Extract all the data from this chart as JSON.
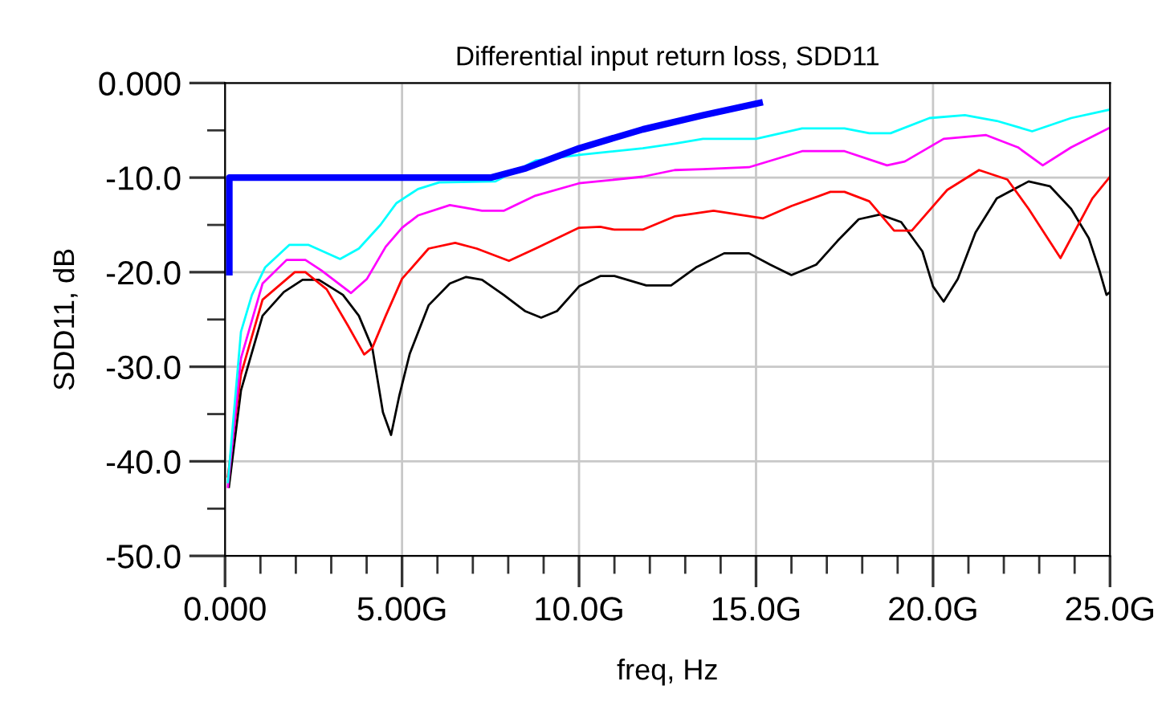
{
  "chart_data": {
    "type": "line",
    "title": "Differential input return loss, SDD11",
    "xlabel": "freq, Hz",
    "ylabel": "SDD11, dB",
    "xlim": [
      0,
      25
    ],
    "ylim": [
      -50,
      0
    ],
    "xticks": [
      {
        "value": 0,
        "label": "0.000"
      },
      {
        "value": 5,
        "label": "5.00G"
      },
      {
        "value": 10,
        "label": "10.0G"
      },
      {
        "value": 15,
        "label": "15.0G"
      },
      {
        "value": 20,
        "label": "20.0G"
      },
      {
        "value": 25,
        "label": "25.0G"
      }
    ],
    "yticks": [
      {
        "value": -50,
        "label": "-50.0"
      },
      {
        "value": -40,
        "label": "-40.0"
      },
      {
        "value": -30,
        "label": "-30.0"
      },
      {
        "value": -20,
        "label": "-20.0"
      },
      {
        "value": -10,
        "label": "-10.0"
      },
      {
        "value": 0,
        "label": "0.000"
      }
    ],
    "grid": true,
    "legend": false,
    "line_style": "solid",
    "marker": "none",
    "series": [
      {
        "color": "#000000",
        "x": [
          0.11,
          0.45,
          1.06,
          1.66,
          2.19,
          2.65,
          3.33,
          3.78,
          4.16,
          4.46,
          4.69,
          4.92,
          5.22,
          5.75,
          6.35,
          6.81,
          7.26,
          7.87,
          8.47,
          8.93,
          9.38,
          10.0,
          10.6,
          11.0,
          11.9,
          12.6,
          13.3,
          14.1,
          14.8,
          15.4,
          16.0,
          16.7,
          17.3,
          17.9,
          18.5,
          19.1,
          19.7,
          20.0,
          20.3,
          20.7,
          21.2,
          21.8,
          22.7,
          23.3,
          23.9,
          24.4,
          24.7,
          24.9,
          25.0
        ],
        "values": [
          -42.7,
          -32.5,
          -24.6,
          -22.1,
          -20.8,
          -20.8,
          -22.4,
          -24.6,
          -28.0,
          -34.8,
          -37.2,
          -33.1,
          -28.6,
          -23.5,
          -21.2,
          -20.5,
          -20.8,
          -22.4,
          -24.1,
          -24.8,
          -24.1,
          -21.5,
          -20.4,
          -20.4,
          -21.4,
          -21.4,
          -19.5,
          -18.0,
          -18.0,
          -19.2,
          -20.3,
          -19.2,
          -16.7,
          -14.4,
          -13.9,
          -14.7,
          -17.8,
          -21.5,
          -23.1,
          -20.7,
          -15.8,
          -12.2,
          -10.4,
          -10.9,
          -13.3,
          -16.4,
          -19.8,
          -22.4,
          -22.1
        ]
      },
      {
        "color": "#ff0000",
        "x": [
          0.08,
          0.45,
          1.06,
          1.97,
          2.27,
          2.87,
          3.48,
          3.93,
          4.16,
          4.54,
          5.0,
          5.75,
          6.5,
          7.11,
          8.02,
          8.77,
          10.0,
          10.6,
          11.0,
          11.8,
          12.7,
          13.8,
          15.2,
          16.0,
          17.1,
          17.5,
          18.2,
          18.9,
          19.4,
          20.4,
          21.3,
          22.1,
          22.7,
          23.6,
          24.5,
          25.0
        ],
        "values": [
          -41.6,
          -30.8,
          -22.9,
          -20.0,
          -20.0,
          -21.8,
          -25.7,
          -28.7,
          -28.0,
          -24.6,
          -20.7,
          -17.5,
          -16.9,
          -17.5,
          -18.8,
          -17.5,
          -15.3,
          -15.2,
          -15.5,
          -15.5,
          -14.1,
          -13.5,
          -14.3,
          -13.0,
          -11.5,
          -11.5,
          -12.5,
          -15.6,
          -15.6,
          -11.3,
          -9.2,
          -10.2,
          -13.3,
          -18.5,
          -12.2,
          -9.9
        ]
      },
      {
        "color": "#ff00ff",
        "x": [
          0.08,
          0.45,
          1.06,
          1.74,
          2.27,
          2.72,
          3.56,
          4.01,
          4.54,
          5.0,
          5.45,
          6.35,
          7.26,
          7.87,
          8.77,
          10.0,
          11.8,
          12.7,
          13.5,
          14.8,
          16.3,
          17.5,
          18.7,
          19.2,
          20.3,
          21.5,
          22.4,
          23.1,
          23.9,
          25.0
        ],
        "values": [
          -42.7,
          -29.1,
          -21.2,
          -18.7,
          -18.7,
          -19.8,
          -22.2,
          -20.7,
          -17.3,
          -15.3,
          -14.0,
          -12.9,
          -13.5,
          -13.5,
          -11.9,
          -10.6,
          -9.9,
          -9.2,
          -9.1,
          -8.9,
          -7.2,
          -7.2,
          -8.7,
          -8.3,
          -5.9,
          -5.5,
          -6.8,
          -8.7,
          -6.8,
          -4.7
        ]
      },
      {
        "color": "#00ffff",
        "x": [
          0.08,
          0.45,
          0.76,
          1.13,
          1.82,
          2.35,
          3.25,
          3.78,
          4.39,
          4.84,
          5.45,
          6.05,
          7.64,
          8.77,
          10.0,
          11.8,
          12.7,
          13.5,
          15.0,
          16.3,
          17.5,
          18.2,
          18.8,
          19.9,
          20.9,
          21.8,
          22.8,
          23.9,
          25.0
        ],
        "values": [
          -42.2,
          -26.3,
          -22.4,
          -19.5,
          -17.1,
          -17.1,
          -18.6,
          -17.5,
          -15.0,
          -12.7,
          -11.2,
          -10.5,
          -10.4,
          -8.2,
          -7.6,
          -6.9,
          -6.4,
          -5.9,
          -5.9,
          -4.8,
          -4.8,
          -5.3,
          -5.3,
          -3.7,
          -3.4,
          -4.0,
          -5.1,
          -3.7,
          -2.8
        ]
      },
      {
        "color": "#0000ff",
        "x": [
          0.12,
          0.12,
          7.5,
          8.5,
          10.0,
          11.8,
          13.5,
          15.1
        ],
        "values": [
          -20.0,
          -10.0,
          -10.0,
          -9.0,
          -6.9,
          -4.9,
          -3.4,
          -2.1
        ]
      }
    ]
  }
}
